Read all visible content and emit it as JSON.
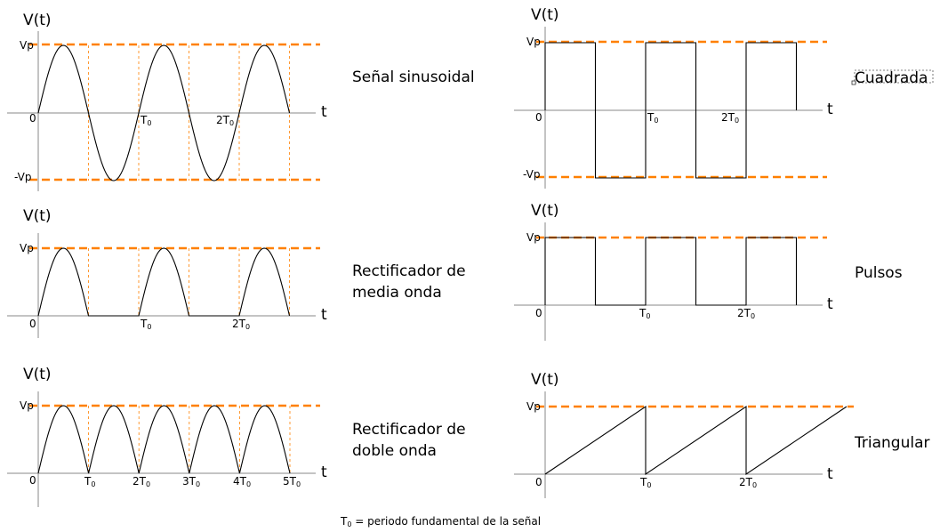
{
  "chart_data": [
    {
      "type": "line",
      "waveform": "sine",
      "title": "Señal sinusoidal",
      "ylabel": "V(t)",
      "xlabel": "t",
      "levels": [
        "Vp",
        "0",
        "-Vp"
      ],
      "ticks": [
        {
          "label": "T",
          "sub": "0"
        },
        {
          "label": "2T",
          "sub": "0"
        }
      ],
      "periods": 2.5,
      "ylim": [
        -1,
        1
      ]
    },
    {
      "type": "line",
      "waveform": "square",
      "title": "Cuadrada",
      "ylabel": "V(t)",
      "xlabel": "t",
      "levels": [
        "Vp",
        "0",
        "-Vp"
      ],
      "ticks": [
        {
          "label": "T",
          "sub": "0"
        },
        {
          "label": "2T",
          "sub": "0"
        }
      ],
      "periods": 2.5,
      "ylim": [
        -1,
        1
      ]
    },
    {
      "type": "line",
      "waveform": "half-wave rectified",
      "title": "Rectificador de media onda",
      "title_lines": [
        "Rectificador de",
        "media onda"
      ],
      "ylabel": "V(t)",
      "xlabel": "t",
      "levels": [
        "Vp",
        "0"
      ],
      "ticks": [
        {
          "label": "T",
          "sub": "0"
        },
        {
          "label": "2T",
          "sub": "0"
        }
      ],
      "periods": 2.5,
      "ylim": [
        0,
        1
      ]
    },
    {
      "type": "line",
      "waveform": "pulse",
      "title": "Pulsos",
      "ylabel": "V(t)",
      "xlabel": "t",
      "levels": [
        "Vp",
        "0"
      ],
      "ticks": [
        {
          "label": "T",
          "sub": "0"
        },
        {
          "label": "2T",
          "sub": "0"
        }
      ],
      "periods": 2.5,
      "ylim": [
        0,
        1
      ]
    },
    {
      "type": "line",
      "waveform": "full-wave rectified",
      "title": "Rectificador de doble onda",
      "title_lines": [
        "Rectificador de",
        "doble onda"
      ],
      "ylabel": "V(t)",
      "xlabel": "t",
      "levels": [
        "Vp",
        "0"
      ],
      "ticks": [
        {
          "label": "T",
          "sub": "0"
        },
        {
          "label": "2T",
          "sub": "0"
        },
        {
          "label": "3T",
          "sub": "0"
        },
        {
          "label": "4T",
          "sub": "0"
        },
        {
          "label": "5T",
          "sub": "0"
        }
      ],
      "periods": 5,
      "ylim": [
        0,
        1
      ]
    },
    {
      "type": "line",
      "waveform": "sawtooth",
      "title": "Triangular",
      "ylabel": "V(t)",
      "xlabel": "t",
      "levels": [
        "Vp",
        "0"
      ],
      "ticks": [
        {
          "label": "T",
          "sub": "0"
        },
        {
          "label": "2T",
          "sub": "0"
        }
      ],
      "periods": 3,
      "ylim": [
        0,
        1
      ]
    }
  ],
  "footnote": {
    "symbol": "T",
    "sub": "0",
    "text": " = periodo fundamental de la señal"
  }
}
